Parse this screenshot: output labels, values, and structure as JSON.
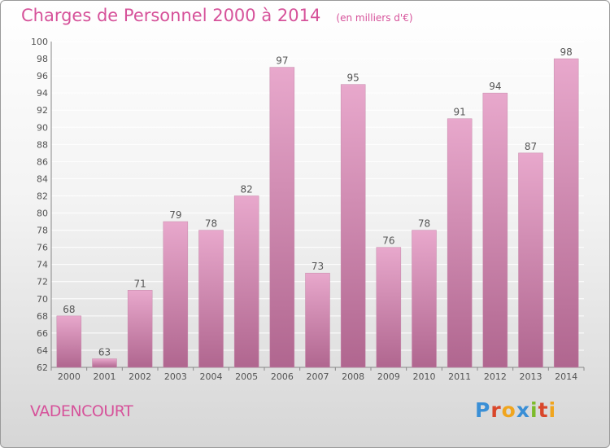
{
  "header": {
    "title": "Charges de Personnel 2000 à 2014",
    "unit": "(en milliers d'€)"
  },
  "footer": {
    "commune": "VADENCOURT",
    "brand": "Proxiti",
    "brand_colors": [
      "#3a8fd6",
      "#d9472b",
      "#f0a51e",
      "#3a8fd6",
      "#7cbb2a",
      "#d9472b",
      "#f0a51e"
    ]
  },
  "colors": {
    "bar_light": "#e8a8cc",
    "bar_dark": "#b0668f",
    "title": "#d6529a",
    "axis": "#555555"
  },
  "chart_data": {
    "type": "bar",
    "categories": [
      "2000",
      "2001",
      "2002",
      "2003",
      "2004",
      "2005",
      "2006",
      "2007",
      "2008",
      "2009",
      "2010",
      "2011",
      "2012",
      "2013",
      "2014"
    ],
    "values": [
      68,
      63,
      71,
      79,
      78,
      82,
      97,
      73,
      95,
      76,
      78,
      91,
      94,
      87,
      98
    ],
    "ylim": [
      62,
      100
    ],
    "yticks": [
      62,
      64,
      66,
      68,
      70,
      72,
      74,
      76,
      78,
      80,
      82,
      84,
      86,
      88,
      90,
      92,
      94,
      96,
      98,
      100
    ],
    "grid": true,
    "title": "Charges de Personnel 2000 à 2014",
    "xlabel": "",
    "ylabel": ""
  }
}
